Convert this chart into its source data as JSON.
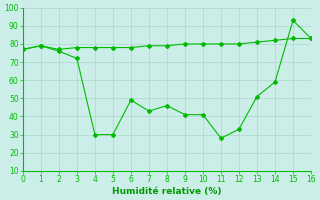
{
  "x": [
    0,
    1,
    2,
    3,
    4,
    5,
    6,
    7,
    8,
    9,
    10,
    11,
    12,
    13,
    14,
    15,
    16
  ],
  "line_dip": [
    77,
    79,
    76,
    72,
    30,
    30,
    49,
    43,
    46,
    41,
    41,
    28,
    33,
    51,
    59,
    93,
    83
  ],
  "line_flat": [
    77,
    79,
    77,
    78,
    78,
    78,
    78,
    79,
    79,
    80,
    80,
    80,
    80,
    81,
    82,
    83,
    83
  ],
  "line_color": "#00bb00",
  "bg_color": "#cbefe8",
  "grid_color": "#aad6cc",
  "xlabel": "Humidité relative (%)",
  "xlabel_color": "#009900",
  "ylim": [
    10,
    100
  ],
  "xlim": [
    0,
    16
  ],
  "yticks": [
    10,
    20,
    30,
    40,
    50,
    60,
    70,
    80,
    90,
    100
  ],
  "xticks": [
    0,
    1,
    2,
    3,
    4,
    5,
    6,
    7,
    8,
    9,
    10,
    11,
    12,
    13,
    14,
    15,
    16
  ]
}
